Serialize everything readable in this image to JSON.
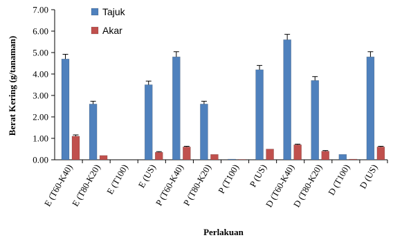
{
  "chart_data": {
    "type": "bar",
    "title": "",
    "xlabel": "Perlakuan",
    "ylabel": "Berat Kering (g/tanaman)",
    "ylim": [
      0,
      7
    ],
    "yticks": [
      "0.00",
      "1.00",
      "2.00",
      "3.00",
      "4.00",
      "5.00",
      "6.00",
      "7.00"
    ],
    "grid": false,
    "legend_position": "top-left",
    "categories": [
      "E (T60-K40)",
      "E (T80-K20)",
      "E (T100)",
      "E (US)",
      "P (T60-K40)",
      "P (T80-K20)",
      "P (T100)",
      "P (US)",
      "D (T60-K40)",
      "D (T80-K20)",
      "D (T100)",
      "D (US)"
    ],
    "series": [
      {
        "name": "Tajuk",
        "color": "#4f81bd",
        "values": [
          4.7,
          2.6,
          0.0,
          3.5,
          4.8,
          2.6,
          0.03,
          4.2,
          5.6,
          3.7,
          0.25,
          4.8
        ],
        "errors": [
          0.22,
          0.13,
          0.0,
          0.17,
          0.24,
          0.13,
          0.0,
          0.2,
          0.25,
          0.18,
          0.0,
          0.24
        ]
      },
      {
        "name": "Akar",
        "color": "#c0504d",
        "values": [
          1.1,
          0.2,
          0.0,
          0.35,
          0.6,
          0.25,
          0.02,
          0.5,
          0.7,
          0.4,
          0.03,
          0.6
        ],
        "errors": [
          0.06,
          0.0,
          0.0,
          0.03,
          0.03,
          0.0,
          0.0,
          0.0,
          0.03,
          0.03,
          0.0,
          0.03
        ]
      }
    ]
  }
}
